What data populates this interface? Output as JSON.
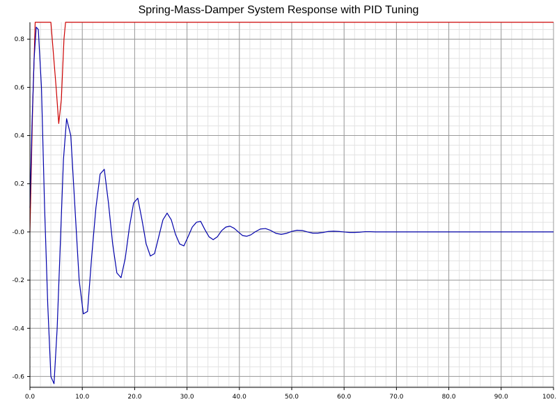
{
  "chart_data": {
    "type": "line",
    "title": "Spring-Mass-Damper System Response with PID Tuning",
    "xlabel": "",
    "ylabel": "",
    "xlim": [
      0,
      100
    ],
    "ylim": [
      -0.645,
      0.87
    ],
    "x_ticks": [
      0,
      10,
      20,
      30,
      40,
      50,
      60,
      70,
      80,
      90,
      100
    ],
    "x_tick_labels": [
      "0.0",
      "10.0",
      "20.0",
      "30.0",
      "40.0",
      "50.0",
      "60.0",
      "70.0",
      "80.0",
      "90.0",
      "100."
    ],
    "y_ticks": [
      -0.6,
      -0.4,
      -0.2,
      0.0,
      0.2,
      0.4,
      0.6,
      0.8
    ],
    "y_tick_labels": [
      "-0.6",
      "-0.4",
      "-0.2",
      "-0.0",
      "0.2",
      "0.4",
      "0.6",
      "0.8"
    ],
    "grid": true,
    "minor_grid": true,
    "legend": "none",
    "series": [
      {
        "color": "#cc0000",
        "x": [
          0,
          0.5,
          1,
          1.5,
          2,
          3,
          4,
          5,
          5.5,
          6,
          6.5,
          6.8,
          7,
          8,
          20,
          40,
          60,
          80,
          100
        ],
        "y": [
          0,
          0.5,
          0.87,
          0.87,
          0.87,
          0.87,
          0.87,
          0.6,
          0.45,
          0.55,
          0.8,
          0.87,
          0.87,
          0.87,
          0.87,
          0.87,
          0.87,
          0.87,
          0.87
        ]
      },
      {
        "color": "#0000aa",
        "x": [
          0,
          0.4,
          0.8,
          1.2,
          1.6,
          2.2,
          2.8,
          3.4,
          4.0,
          4.6,
          5.2,
          5.8,
          6.4,
          7.0,
          7.8,
          8.6,
          9.4,
          10.2,
          11.0,
          11.8,
          12.6,
          13.4,
          14.2,
          15.0,
          15.8,
          16.6,
          17.4,
          18.2,
          19.0,
          19.8,
          20.6,
          21.4,
          22.2,
          23.0,
          23.8,
          24.6,
          25.4,
          26.2,
          27.0,
          27.8,
          28.6,
          29.4,
          30.2,
          31.0,
          31.8,
          32.6,
          33.4,
          34.2,
          35.0,
          35.8,
          36.6,
          37.4,
          38.2,
          39.0,
          39.8,
          40.6,
          41.4,
          42.2,
          43.0,
          44.0,
          45.0,
          46.0,
          47.0,
          48.0,
          49.0,
          50.0,
          51.0,
          52.0,
          53.0,
          54.0,
          55.0,
          56.0,
          57.0,
          58.0,
          59.0,
          60.0,
          61.0,
          62.0,
          63.0,
          64.0,
          65.0,
          66.0,
          68.0,
          70.0,
          75.0,
          80.0,
          85.0,
          90.0,
          95.0,
          100.0
        ],
        "y": [
          0.1,
          0.45,
          0.72,
          0.85,
          0.84,
          0.6,
          0.1,
          -0.3,
          -0.6,
          -0.63,
          -0.4,
          -0.05,
          0.3,
          0.47,
          0.4,
          0.1,
          -0.2,
          -0.34,
          -0.33,
          -0.1,
          0.1,
          0.24,
          0.26,
          0.12,
          -0.05,
          -0.17,
          -0.19,
          -0.11,
          0.02,
          0.12,
          0.14,
          0.05,
          -0.05,
          -0.1,
          -0.09,
          -0.02,
          0.05,
          0.078,
          0.05,
          -0.01,
          -0.05,
          -0.058,
          -0.02,
          0.02,
          0.04,
          0.044,
          0.01,
          -0.02,
          -0.032,
          -0.02,
          0.005,
          0.02,
          0.024,
          0.015,
          0.0,
          -0.015,
          -0.018,
          -0.012,
          0.0,
          0.012,
          0.014,
          0.006,
          -0.006,
          -0.01,
          -0.006,
          0.002,
          0.007,
          0.006,
          0.0,
          -0.005,
          -0.005,
          -0.002,
          0.002,
          0.003,
          0.002,
          0.0,
          -0.002,
          -0.002,
          -0.001,
          0.001,
          0.001,
          0.0,
          0.0,
          0.0,
          0.0,
          0.0,
          0.0,
          0.0,
          0.0,
          0.0
        ]
      }
    ]
  }
}
